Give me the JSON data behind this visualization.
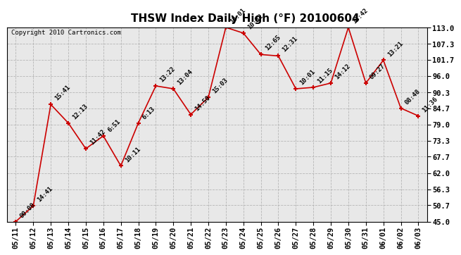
{
  "title": "THSW Index Daily High (°F) 20100604",
  "copyright": "Copyright 2010 Cartronics.com",
  "x_labels": [
    "05/11",
    "05/12",
    "05/13",
    "05/14",
    "05/15",
    "05/16",
    "05/17",
    "05/18",
    "05/19",
    "05/20",
    "05/21",
    "05/22",
    "05/23",
    "05/24",
    "05/25",
    "05/26",
    "05/27",
    "05/28",
    "05/29",
    "05/30",
    "05/31",
    "06/01",
    "06/02",
    "06/03"
  ],
  "y_values": [
    45.0,
    50.5,
    86.0,
    79.5,
    70.5,
    75.0,
    64.5,
    79.5,
    92.5,
    91.5,
    82.5,
    88.5,
    113.0,
    111.0,
    103.5,
    103.0,
    91.5,
    92.0,
    93.5,
    113.0,
    93.5,
    101.5,
    84.7,
    82.0
  ],
  "time_labels": [
    "00:00",
    "14:41",
    "15:41",
    "12:13",
    "11:42",
    "6:51",
    "10:11",
    "6:13",
    "13:22",
    "13:04",
    "14:50",
    "15:03",
    "13:01",
    "10:32",
    "12:65",
    "12:31",
    "10:01",
    "11:15",
    "14:12",
    "13:42",
    "09:27",
    "13:21",
    "08:48",
    "11:36"
  ],
  "y_ticks": [
    45.0,
    50.7,
    56.3,
    62.0,
    67.7,
    73.3,
    79.0,
    84.7,
    90.3,
    96.0,
    101.7,
    107.3,
    113.0
  ],
  "y_min": 45.0,
  "y_max": 113.0,
  "line_color": "#cc0000",
  "marker_color": "#cc0000",
  "bg_color": "#ffffff",
  "plot_bg_color": "#e8e8e8",
  "grid_color": "#aaaaaa",
  "title_fontsize": 11,
  "tick_fontsize": 7.5,
  "copyright_fontsize": 6.5,
  "annotation_fontsize": 6.5
}
